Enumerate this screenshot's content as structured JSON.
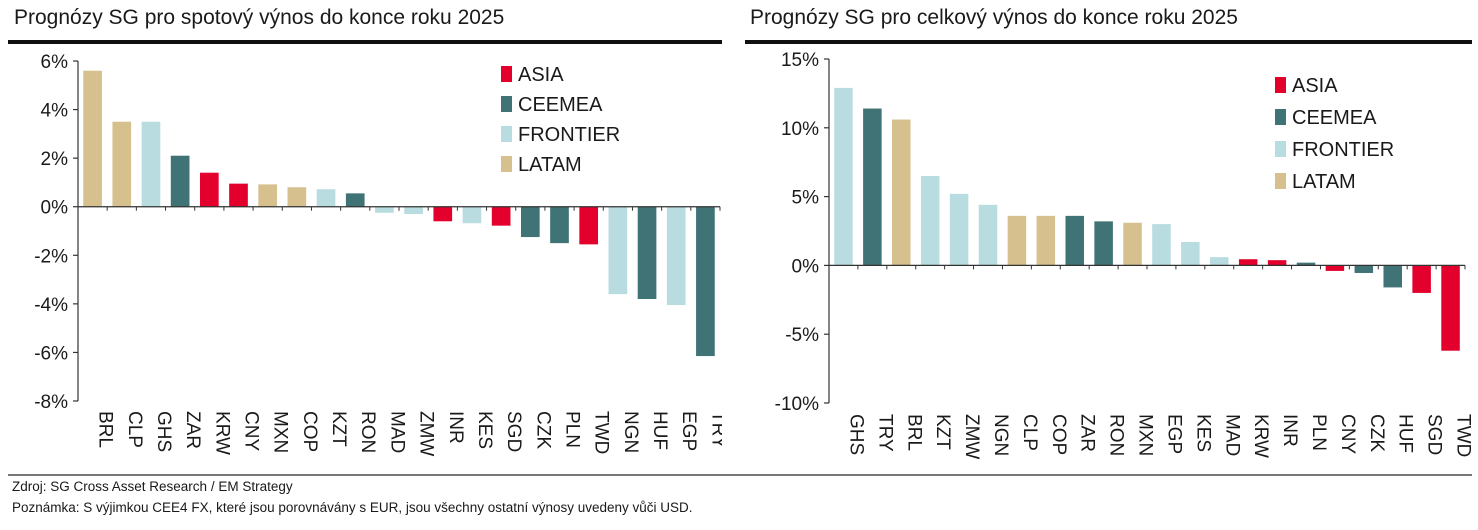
{
  "colors": {
    "ASIA": "#e3002c",
    "CEEMEA": "#3f7375",
    "FRONTIER": "#b8dce0",
    "LATAM": "#d6c18e"
  },
  "chart_data": [
    {
      "type": "bar",
      "title": "Prognózy SG pro spotový výnos do konce roku 2025",
      "ylim": [
        -8,
        6
      ],
      "yticks": [
        6,
        4,
        2,
        0,
        -2,
        -4,
        -6,
        -8
      ],
      "tick_suffix": "%",
      "legend_position": "top-right",
      "legend": [
        "ASIA",
        "CEEMEA",
        "FRONTIER",
        "LATAM"
      ],
      "categories": [
        "BRL",
        "CLP",
        "GHS",
        "ZAR",
        "KRW",
        "CNY",
        "MXN",
        "COP",
        "KZT",
        "RON",
        "MAD",
        "ZMW",
        "INR",
        "KES",
        "SGD",
        "CZK",
        "PLN",
        "TWD",
        "NGN",
        "HUF",
        "EGP",
        "TRY"
      ],
      "groups": [
        "LATAM",
        "LATAM",
        "FRONTIER",
        "CEEMEA",
        "ASIA",
        "ASIA",
        "LATAM",
        "LATAM",
        "FRONTIER",
        "CEEMEA",
        "FRONTIER",
        "FRONTIER",
        "ASIA",
        "FRONTIER",
        "ASIA",
        "CEEMEA",
        "CEEMEA",
        "ASIA",
        "FRONTIER",
        "CEEMEA",
        "FRONTIER",
        "CEEMEA"
      ],
      "values": [
        5.6,
        3.5,
        3.5,
        2.1,
        1.4,
        0.95,
        0.92,
        0.8,
        0.72,
        0.55,
        -0.25,
        -0.3,
        -0.6,
        -0.68,
        -0.78,
        -1.25,
        -1.5,
        -1.55,
        -3.6,
        -3.8,
        -4.05,
        -6.15
      ]
    },
    {
      "type": "bar",
      "title": "Prognózy SG pro celkový výnos do konce roku 2025",
      "ylim": [
        -10,
        15
      ],
      "yticks": [
        15,
        10,
        5,
        0,
        -5,
        -10
      ],
      "tick_suffix": "%",
      "legend_position": "top-right",
      "legend": [
        "ASIA",
        "CEEMEA",
        "FRONTIER",
        "LATAM"
      ],
      "categories": [
        "GHS",
        "TRY",
        "BRL",
        "KZT",
        "ZMW",
        "NGN",
        "CLP",
        "COP",
        "ZAR",
        "RON",
        "MXN",
        "EGP",
        "KES",
        "MAD",
        "KRW",
        "INR",
        "PLN",
        "CNY",
        "CZK",
        "HUF",
        "SGD",
        "TWD"
      ],
      "groups": [
        "FRONTIER",
        "CEEMEA",
        "LATAM",
        "FRONTIER",
        "FRONTIER",
        "FRONTIER",
        "LATAM",
        "LATAM",
        "CEEMEA",
        "CEEMEA",
        "LATAM",
        "FRONTIER",
        "FRONTIER",
        "FRONTIER",
        "ASIA",
        "ASIA",
        "CEEMEA",
        "ASIA",
        "CEEMEA",
        "CEEMEA",
        "ASIA",
        "ASIA"
      ],
      "values": [
        12.9,
        11.4,
        10.6,
        6.5,
        5.2,
        4.4,
        3.6,
        3.6,
        3.6,
        3.2,
        3.1,
        3.0,
        1.7,
        0.6,
        0.45,
        0.38,
        0.2,
        -0.4,
        -0.55,
        -1.6,
        -2.0,
        -6.2
      ]
    }
  ],
  "footer": {
    "source": "Zdroj: SG Cross Asset Research / EM Strategy",
    "note": "Poznámka: S výjimkou CEE4 FX, které jsou porovnávány s EUR, jsou všechny ostatní výnosy uvedeny vůči USD."
  }
}
